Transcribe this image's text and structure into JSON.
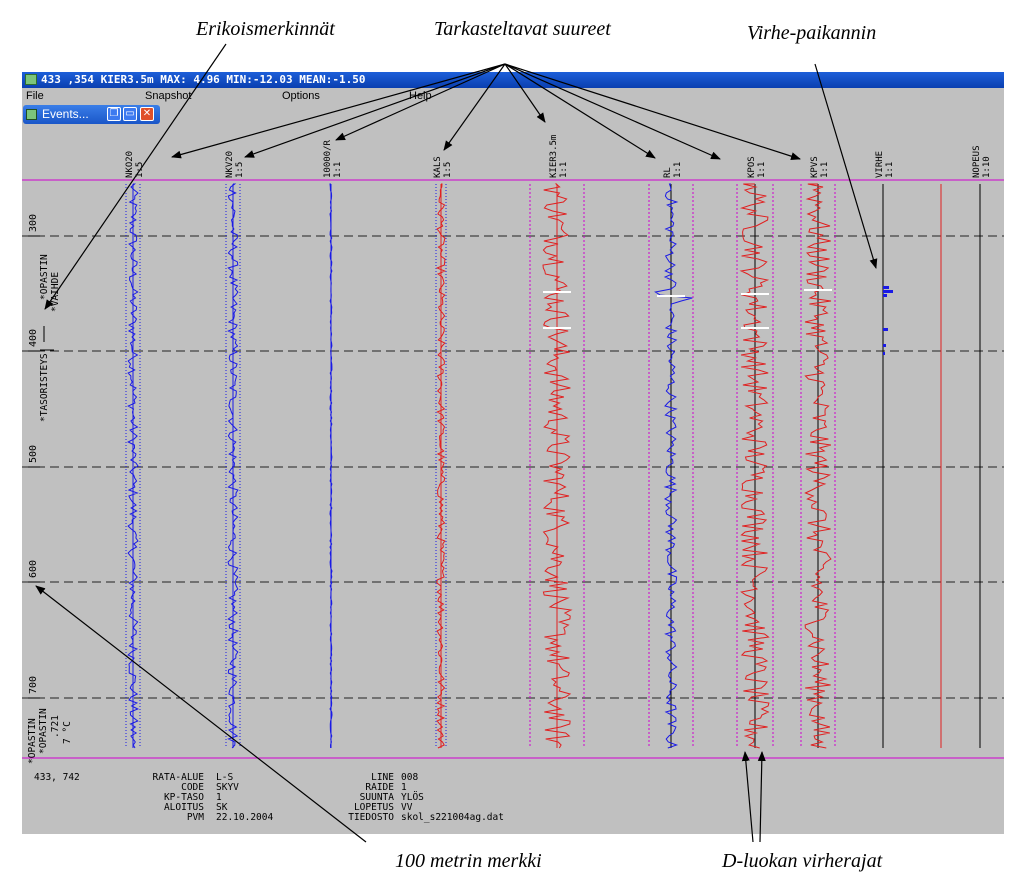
{
  "annotations": {
    "erikois": "Erikoismerkinnät",
    "suureet": "Tarkasteltavat suureet",
    "virhepaikannin": "Virhe-paikannin",
    "merkki100": "100 metrin merkki",
    "dluokka": "D-luokan virherajat"
  },
  "window": {
    "title": "433 ,354  KIER3.5m MAX: 4.96 MIN:-12.03 MEAN:-1.50"
  },
  "menu": {
    "file": "File",
    "snapshot": "Snapshot",
    "options": "Options",
    "help": "Help"
  },
  "events_window": {
    "title": "Events..."
  },
  "channels": [
    {
      "name": "NKO20",
      "scale": "1:5"
    },
    {
      "name": "NKV20",
      "scale": "1:5"
    },
    {
      "name": "10000/R",
      "scale": "1:1"
    },
    {
      "name": "KALS",
      "scale": "1:5"
    },
    {
      "name": "KIER3.5m",
      "scale": "1:1"
    },
    {
      "name": "RL",
      "scale": "1:1"
    },
    {
      "name": "KPOS",
      "scale": "1:1"
    },
    {
      "name": "KPVS",
      "scale": "1:1"
    },
    {
      "name": "VIRHE",
      "scale": "1:1"
    },
    {
      "name": "NOPEUS",
      "scale": "1:10"
    }
  ],
  "distance_marks": [
    "300",
    "400",
    "500",
    "600",
    "700"
  ],
  "event_labels": {
    "opastin1": "*OPASTIN",
    "vaihde": "*VAIHDE",
    "tasoristeys": "*TASORISTEYS",
    "opastin2": "*OPASTIN",
    "opastin3": "*OPASTIN",
    "val721": ".721",
    "temp": "7 °C"
  },
  "footer": {
    "position": "433, 742",
    "rata_alue_k": "RATA-ALUE",
    "rata_alue_v": "L-S",
    "code_k": "CODE",
    "code_v": "SKYV",
    "kptaso_k": "KP-TASO",
    "kptaso_v": "1",
    "aloitus_k": "ALOITUS",
    "aloitus_v": "SK",
    "pvm_k": "PVM",
    "pvm_v": "22.10.2004",
    "line_k": "LINE",
    "line_v": "008",
    "raide_k": "RAIDE",
    "raide_v": "1",
    "suunta_k": "SUUNTA",
    "suunta_v": "YLÖS",
    "lopetus_k": "LOPETUS",
    "lopetus_v": "VV",
    "tiedosto_k": "TIEDOSTO",
    "tiedosto_v": "skol_s221004ag.dat"
  },
  "colors": {
    "trace_red": "#e02020",
    "trace_blue": "#1a1ae6",
    "grid_magenta": "#d000d0",
    "bg": "#c0c0c0"
  }
}
